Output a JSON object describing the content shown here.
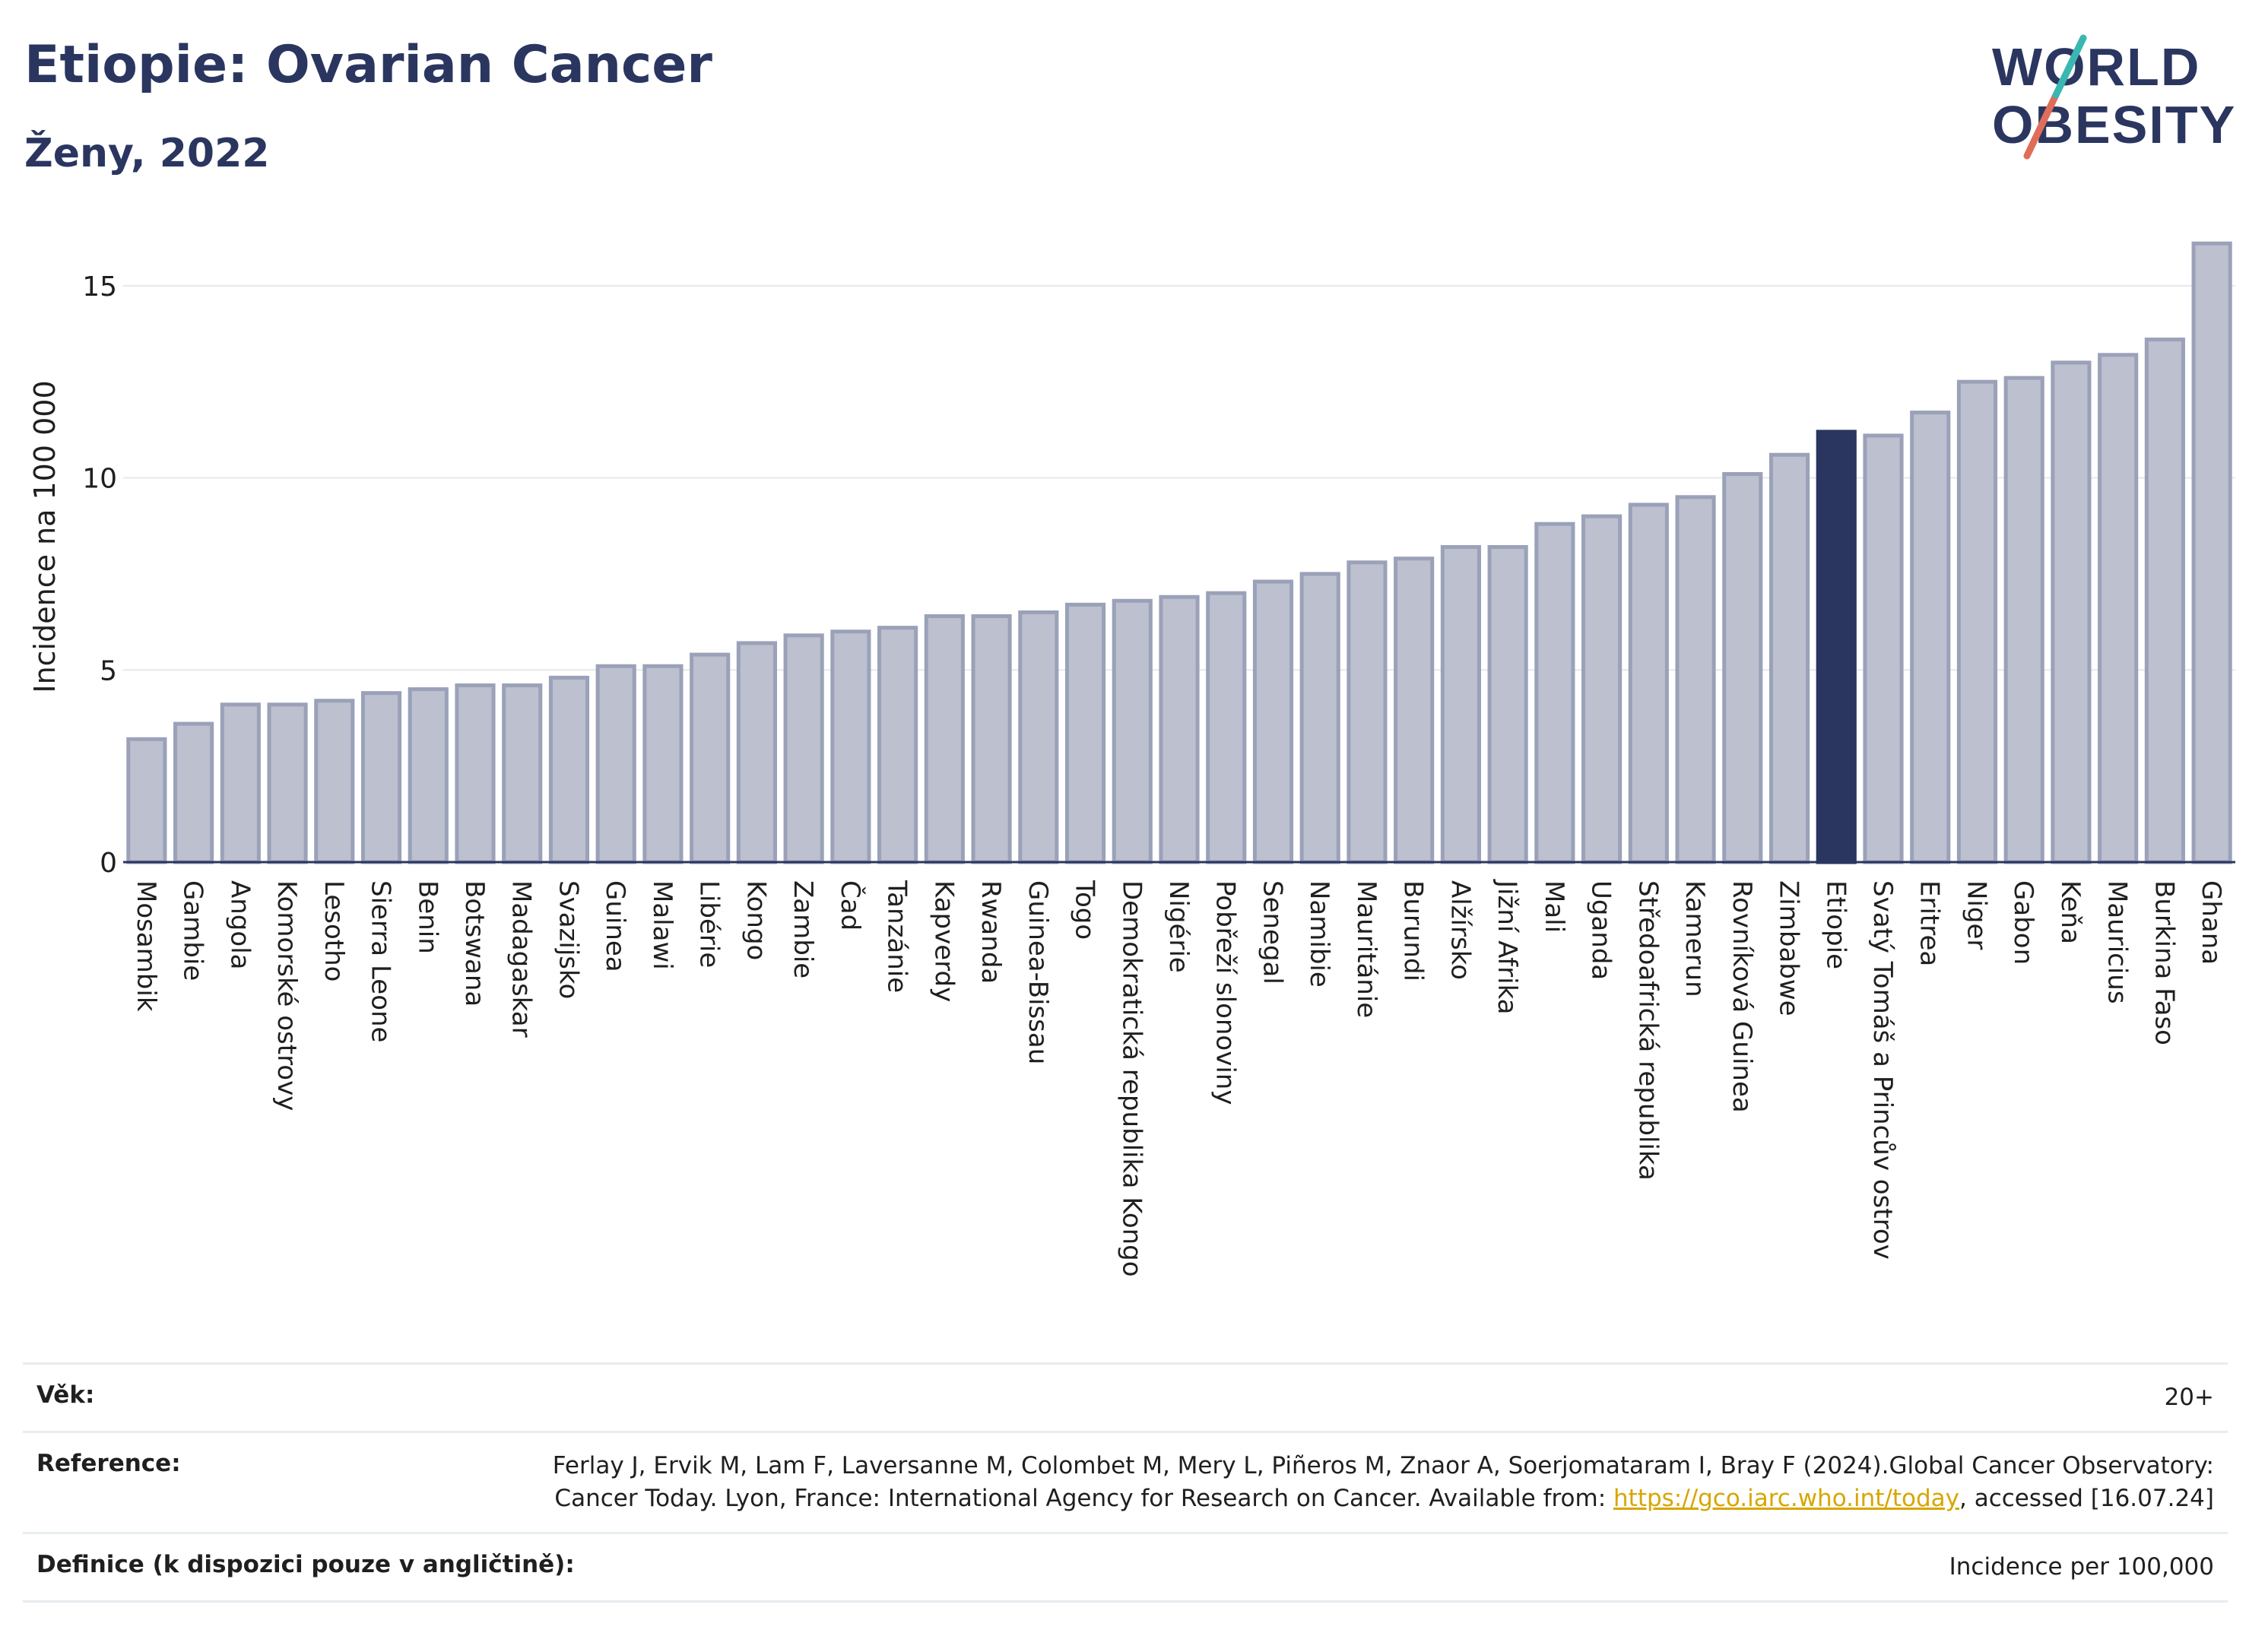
{
  "header": {
    "title": "Etiopie: Ovarian Cancer",
    "subtitle": "Ženy, 2022"
  },
  "logo": {
    "line1": "WORLD",
    "line2": "OBESITY",
    "text_color": "#2a3660",
    "slash_colors": [
      "#e06c5a",
      "#39b7b0"
    ]
  },
  "colors": {
    "bar_fill": "#bcc0cf",
    "bar_stroke": "#9aa1b8",
    "highlight": "#2a3660",
    "grid": "#e6e8ec",
    "axis": "#2a3660"
  },
  "chart_data": {
    "type": "bar",
    "ylabel": "Incidence na 100 000",
    "ylim": [
      0,
      16.5
    ],
    "yticks": [
      0,
      5,
      10,
      15
    ],
    "highlight": "Etiopie",
    "grid": true,
    "categories": [
      "Mosambik",
      "Gambie",
      "Angola",
      "Komorské ostrovy",
      "Lesotho",
      "Sierra Leone",
      "Benin",
      "Botswana",
      "Madagaskar",
      "Svazijsko",
      "Guinea",
      "Malawi",
      "Libérie",
      "Kongo",
      "Zambie",
      "Čad",
      "Tanzánie",
      "Kapverdy",
      "Rwanda",
      "Guinea-Bissau",
      "Togo",
      "Demokratická republika Kongo",
      "Nigérie",
      "Pobřeží slonoviny",
      "Senegal",
      "Namibie",
      "Mauritánie",
      "Burundi",
      "Alžírsko",
      "Jižní Afrika",
      "Mali",
      "Uganda",
      "Středoafrická republika",
      "Kamerun",
      "Rovníková Guinea",
      "Zimbabwe",
      "Etiopie",
      "Svatý Tomáš a Princův ostrov",
      "Eritrea",
      "Niger",
      "Gabon",
      "Keňa",
      "Mauricius",
      "Burkina Faso",
      "Ghana"
    ],
    "values": [
      3.2,
      3.6,
      4.1,
      4.1,
      4.2,
      4.4,
      4.5,
      4.6,
      4.6,
      4.8,
      5.1,
      5.1,
      5.4,
      5.7,
      5.9,
      6.0,
      6.1,
      6.4,
      6.4,
      6.5,
      6.7,
      6.8,
      6.9,
      7.0,
      7.3,
      7.5,
      7.8,
      7.9,
      8.2,
      8.2,
      8.8,
      9.0,
      9.3,
      9.5,
      10.1,
      10.6,
      11.2,
      11.1,
      11.7,
      12.5,
      12.6,
      13.0,
      13.2,
      13.6,
      16.1
    ]
  },
  "info": {
    "age_label": "Věk:",
    "age_value": "20+",
    "reference_label": "Reference:",
    "reference_text_1": "Ferlay J, Ervik M, Lam F, Laversanne M, Colombet M, Mery L, Piñeros M, Znaor A, Soerjomataram I, Bray F (2024).Global Cancer Observatory: Cancer Today. Lyon, France: International Agency for Research on Cancer. Available from: ",
    "reference_link": "https://gco.iarc.who.int/today",
    "reference_text_2": ", accessed [16.07.24]",
    "definition_label": "Definice (k dispozici pouze v angličtině):",
    "definition_value": "Incidence per 100,000"
  }
}
